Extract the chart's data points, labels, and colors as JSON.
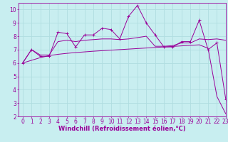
{
  "xlabel": "Windchill (Refroidissement éolien,°C)",
  "background_color": "#c8eef0",
  "line_color": "#990099",
  "grid_color": "#b0dde0",
  "x_values": [
    0,
    1,
    2,
    3,
    4,
    5,
    6,
    7,
    8,
    9,
    10,
    11,
    12,
    13,
    14,
    15,
    16,
    17,
    18,
    19,
    20,
    21,
    22,
    23
  ],
  "jagged_y": [
    6.0,
    7.0,
    6.5,
    6.5,
    8.3,
    8.2,
    7.2,
    8.1,
    8.1,
    8.6,
    8.5,
    7.8,
    9.5,
    10.3,
    9.0,
    8.1,
    7.2,
    7.2,
    7.6,
    7.6,
    9.2,
    7.0,
    7.5,
    3.3
  ],
  "smooth_y": [
    6.0,
    7.0,
    6.6,
    6.6,
    7.6,
    7.7,
    7.6,
    7.7,
    7.75,
    7.8,
    7.8,
    7.75,
    7.8,
    7.9,
    8.0,
    7.25,
    7.25,
    7.3,
    7.5,
    7.5,
    7.8,
    7.75,
    7.8,
    7.7
  ],
  "linear_y": [
    6.0,
    6.2,
    6.4,
    6.55,
    6.65,
    6.72,
    6.78,
    6.83,
    6.88,
    6.92,
    6.96,
    7.0,
    7.04,
    7.08,
    7.12,
    7.16,
    7.2,
    7.24,
    7.28,
    7.32,
    7.36,
    7.1,
    3.5,
    2.2
  ],
  "ylim": [
    2,
    10.5
  ],
  "xlim": [
    -0.5,
    23
  ],
  "yticks": [
    2,
    3,
    4,
    5,
    6,
    7,
    8,
    9,
    10
  ],
  "xticks": [
    0,
    1,
    2,
    3,
    4,
    5,
    6,
    7,
    8,
    9,
    10,
    11,
    12,
    13,
    14,
    15,
    16,
    17,
    18,
    19,
    20,
    21,
    22,
    23
  ],
  "fontsize_label": 6,
  "fontsize_tick": 5.5
}
